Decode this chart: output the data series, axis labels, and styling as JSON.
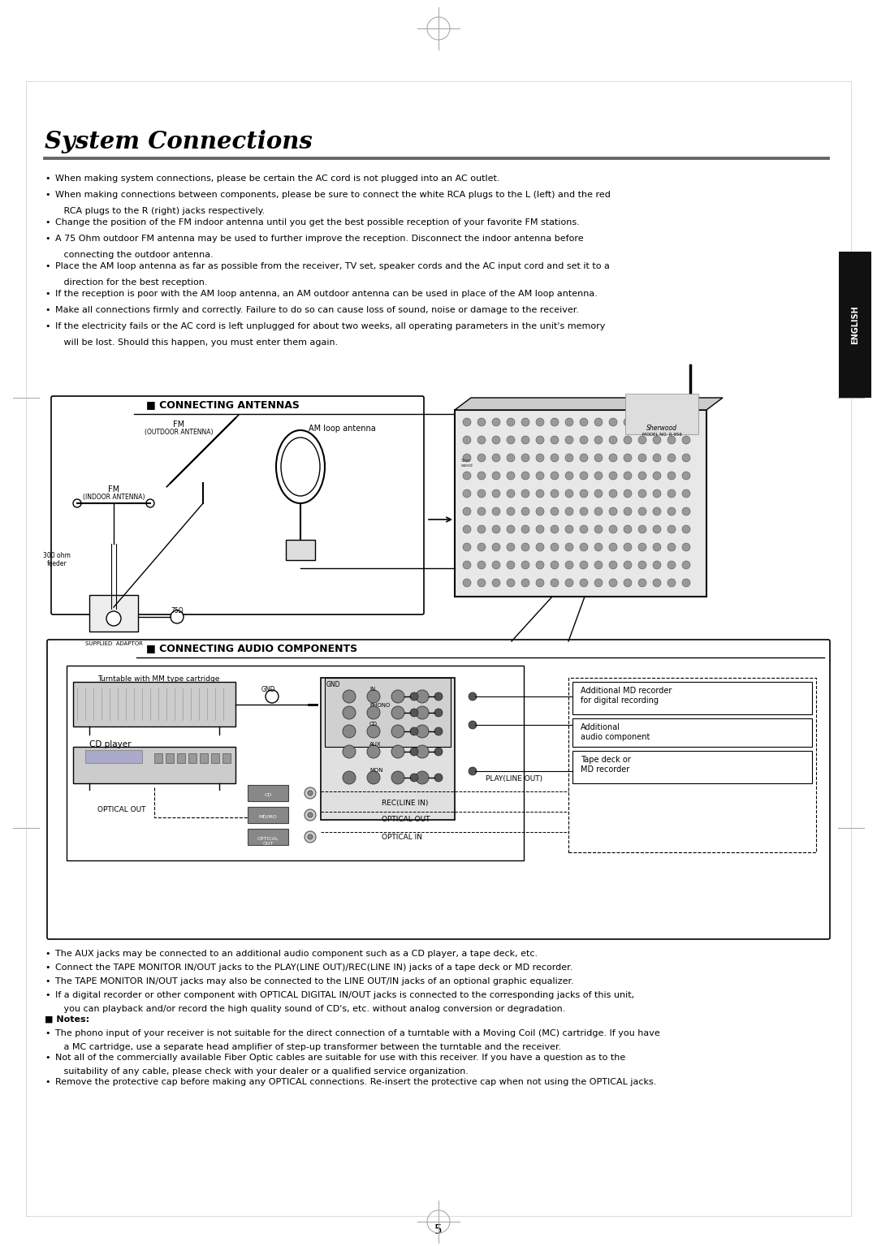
{
  "title": "System Connections",
  "bg_color": "#ffffff",
  "page_number": "5",
  "bullet_points_top": [
    "When making system connections, please be certain the AC cord is not plugged into an AC outlet.",
    "When making connections between components, please be sure to connect the white RCA plugs to the L (left) and the red\n   RCA plugs to the R (right) jacks respectively.",
    "Change the position of the FM indoor antenna until you get the best possible reception of your favorite FM stations.",
    "A 75 Ohm outdoor FM antenna may be used to further improve the reception. Disconnect the indoor antenna before\n   connecting the outdoor antenna.",
    "Place the AM loop antenna as far as possible from the receiver, TV set, speaker cords and the AC input cord and set it to a\n   direction for the best reception.",
    "If the reception is poor with the AM loop antenna, an AM outdoor antenna can be used in place of the AM loop antenna.",
    "Make all connections firmly and correctly. Failure to do so can cause loss of sound, noise or damage to the receiver.",
    "If the electricity fails or the AC cord is left unplugged for about two weeks, all operating parameters in the unit's memory\n   will be lost. Should this happen, you must enter them again."
  ],
  "section1_title": "CONNECTING ANTENNAS",
  "section2_title": "CONNECTING AUDIO COMPONENTS",
  "bullet_points_bottom": [
    "The AUX jacks may be connected to an additional audio component such as a CD player, a tape deck, etc.",
    "Connect the TAPE MONITOR IN/OUT jacks to the PLAY(LINE OUT)/REC(LINE IN) jacks of a tape deck or MD recorder.",
    "The TAPE MONITOR IN/OUT jacks may also be connected to the LINE OUT/IN jacks of an optional graphic equalizer.",
    "If a digital recorder or other component with OPTICAL DIGITAL IN/OUT jacks is connected to the corresponding jacks of this unit,\n   you can playback and/or record the high quality sound of CD's, etc. without analog conversion or degradation.",
    "■ Notes:",
    "The phono input of your receiver is not suitable for the direct connection of a turntable with a Moving Coil (MC) cartridge. If you have\n   a MC cartridge, use a separate head amplifier of step-up transformer between the turntable and the receiver.",
    "Not all of the commercially available Fiber Optic cables are suitable for use with this receiver. If you have a question as to the\n   suitability of any cable, please check with your dealer or a qualified service organization.",
    "Remove the protective cap before making any OPTICAL connections. Re-insert the protective cap when not using the OPTICAL jacks."
  ],
  "english_tab_text": "ENGLISH"
}
